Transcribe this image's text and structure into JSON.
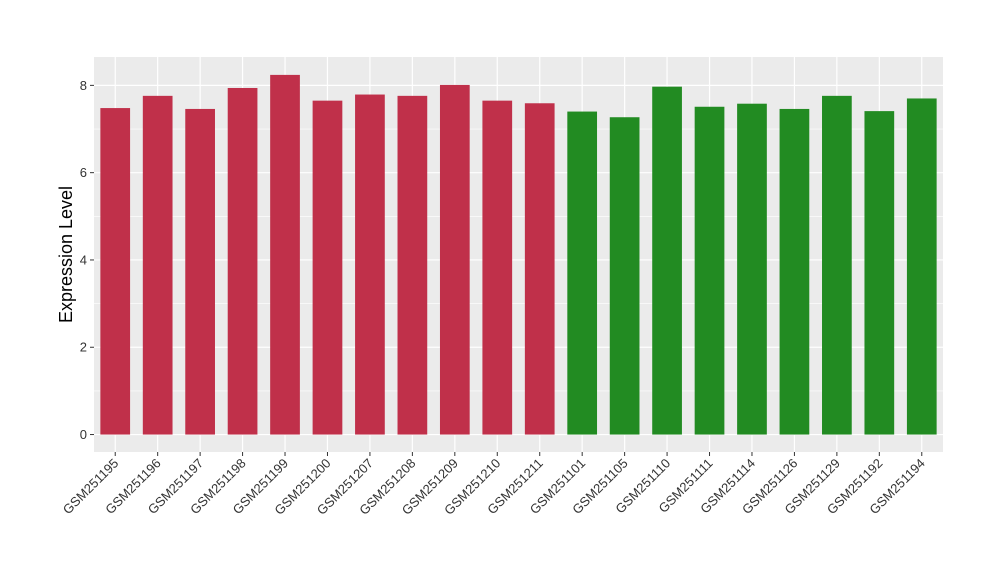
{
  "chart_data": {
    "type": "bar",
    "title": "",
    "xlabel": "",
    "ylabel": "Expression Level",
    "ylim": [
      -0.4,
      8.65
    ],
    "yticks": [
      0,
      2,
      4,
      6,
      8
    ],
    "grid": true,
    "categories": [
      "GSM251195",
      "GSM251196",
      "GSM251197",
      "GSM251198",
      "GSM251199",
      "GSM251200",
      "GSM251207",
      "GSM251208",
      "GSM251209",
      "GSM251210",
      "GSM251211",
      "GSM251101",
      "GSM251105",
      "GSM251110",
      "GSM251111",
      "GSM251114",
      "GSM251126",
      "GSM251129",
      "GSM251192",
      "GSM251194"
    ],
    "values": [
      7.48,
      7.76,
      7.46,
      7.94,
      8.24,
      7.65,
      7.79,
      7.76,
      8.01,
      7.65,
      7.59,
      7.4,
      7.27,
      7.97,
      7.51,
      7.58,
      7.46,
      7.76,
      7.41,
      7.7
    ],
    "groups": [
      "red",
      "red",
      "red",
      "red",
      "red",
      "red",
      "red",
      "red",
      "red",
      "red",
      "red",
      "green",
      "green",
      "green",
      "green",
      "green",
      "green",
      "green",
      "green",
      "green"
    ],
    "colors": {
      "red": "#C0304A",
      "green": "#228B22",
      "panel_background": "#EBEBEB",
      "grid": "#FFFFFF"
    }
  }
}
